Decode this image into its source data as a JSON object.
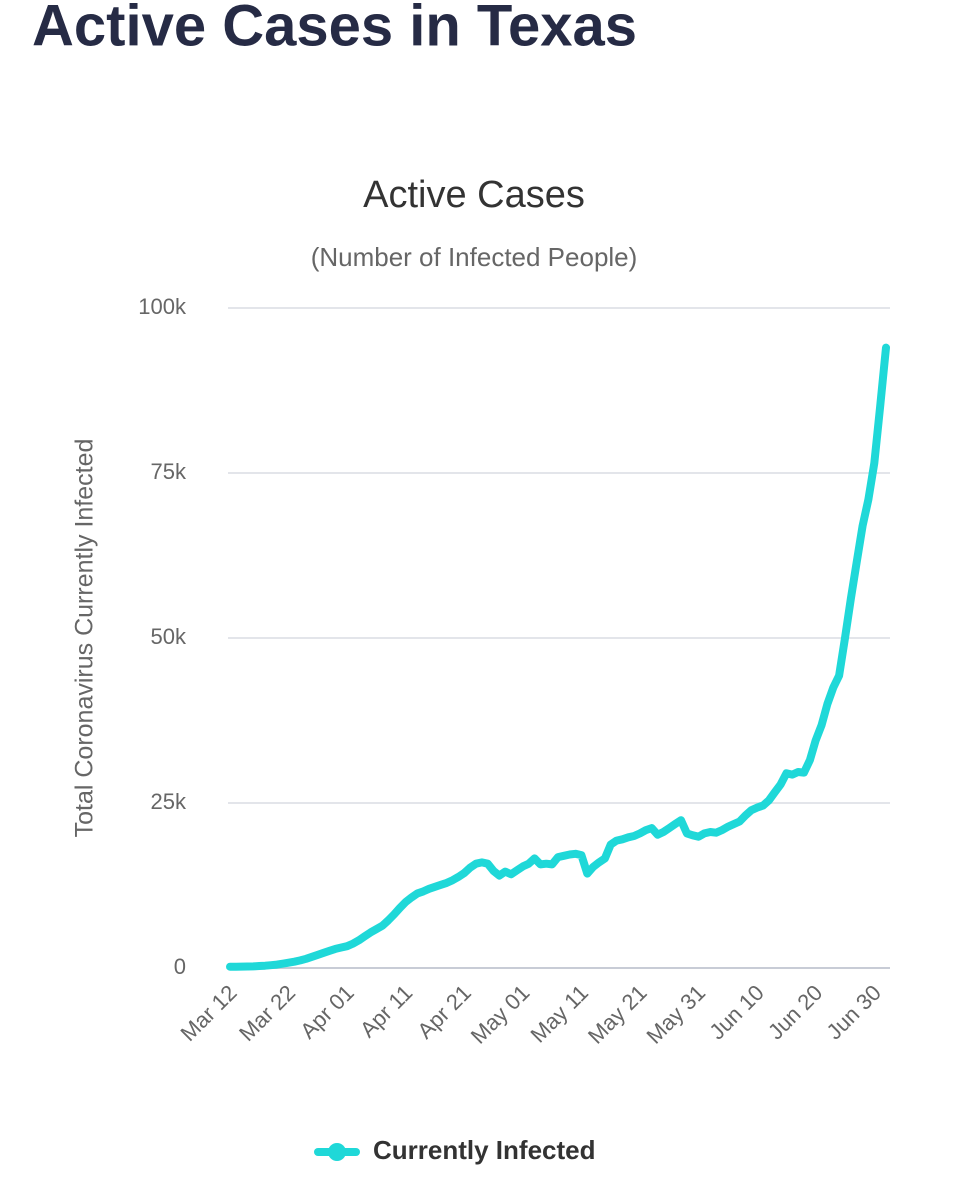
{
  "page_title": "Active Cases in Texas",
  "chart_data": {
    "type": "line",
    "title": "Active Cases",
    "subtitle": "(Number of Infected People)",
    "y_label": "Total Coronavirus Currently Infected",
    "categories": [
      "Mar 12",
      null,
      null,
      null,
      null,
      null,
      null,
      null,
      null,
      null,
      "Mar 22",
      null,
      null,
      null,
      null,
      null,
      null,
      null,
      null,
      null,
      "Apr 01",
      null,
      null,
      null,
      null,
      null,
      null,
      null,
      null,
      null,
      "Apr 11",
      null,
      null,
      null,
      null,
      null,
      null,
      null,
      null,
      null,
      "Apr 21",
      null,
      null,
      null,
      null,
      null,
      null,
      null,
      null,
      null,
      "May 01",
      null,
      null,
      null,
      null,
      null,
      null,
      null,
      null,
      null,
      "May 11",
      null,
      null,
      null,
      null,
      null,
      null,
      null,
      null,
      null,
      "May 21",
      null,
      null,
      null,
      null,
      null,
      null,
      null,
      null,
      null,
      "May 31",
      null,
      null,
      null,
      null,
      null,
      null,
      null,
      null,
      null,
      "Jun 10",
      null,
      null,
      null,
      null,
      null,
      null,
      null,
      null,
      null,
      "Jun 20",
      null,
      null,
      null,
      null,
      null,
      null,
      null,
      null,
      null,
      "Jun 30",
      null,
      null
    ],
    "series": [
      {
        "name": "Currently Infected",
        "color": "#1fd8d8",
        "values": [
          200,
          200,
          210,
          220,
          250,
          300,
          350,
          420,
          520,
          650,
          800,
          950,
          1150,
          1400,
          1700,
          2000,
          2300,
          2600,
          2900,
          3100,
          3300,
          3700,
          4200,
          4800,
          5400,
          5900,
          6400,
          7200,
          8100,
          9100,
          10000,
          10700,
          11300,
          11600,
          12000,
          12300,
          12600,
          12900,
          13300,
          13800,
          14400,
          15200,
          15800,
          16000,
          15800,
          14700,
          14000,
          14600,
          14200,
          14800,
          15400,
          15800,
          16600,
          15700,
          15800,
          15700,
          16800,
          17000,
          17200,
          17300,
          17100,
          14300,
          15300,
          16000,
          16600,
          18700,
          19300,
          19500,
          19800,
          20000,
          20400,
          20900,
          21200,
          20200,
          20600,
          21200,
          21800,
          22400,
          20400,
          20100,
          19900,
          20400,
          20600,
          20500,
          20900,
          21400,
          21800,
          22200,
          23100,
          23900,
          24300,
          24600,
          25400,
          26600,
          27800,
          29500,
          29300,
          29700,
          29600,
          31500,
          34500,
          36800,
          40000,
          42500,
          44300,
          50000,
          56000,
          61500,
          67000,
          71000,
          76500,
          85000,
          94000
        ]
      }
    ],
    "ylim": [
      0,
      100000
    ],
    "yticks": [
      0,
      {
        "value": 25000,
        "label": "25k"
      },
      {
        "value": 50000,
        "label": "50k"
      },
      {
        "value": 75000,
        "label": "75k"
      },
      {
        "value": 100000,
        "label": "100k"
      }
    ],
    "grid": true
  }
}
